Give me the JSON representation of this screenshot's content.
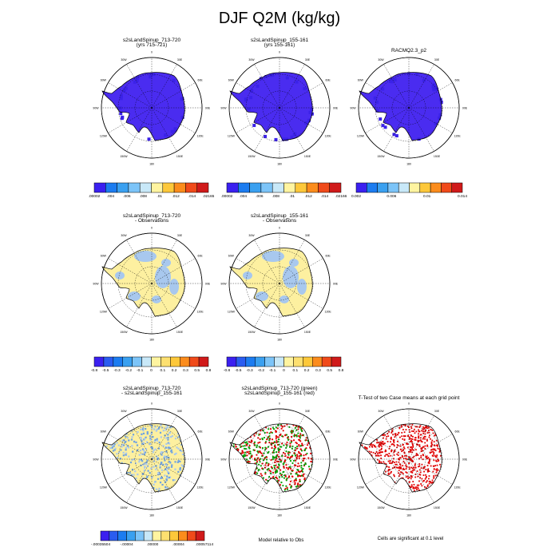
{
  "title": "DJF Q2M (kg/kg)",
  "colors": {
    "ice": "#4a2cf0",
    "ice_alt": "#3b22e8",
    "land_ok": "#fdf0a0",
    "land_diff": "#a8c8ee",
    "sig_red": "#e00000",
    "sig_green": "#00a000",
    "coast": "#000000",
    "grid": "#000000"
  },
  "lon_labels": [
    "0",
    "30E",
    "60E",
    "90E",
    "120E",
    "150E",
    "180",
    "150W",
    "120W",
    "90W",
    "60W",
    "30W"
  ],
  "panels": [
    {
      "id": "p1",
      "title1": "s2sLandSpinup_713-720",
      "title2": "(yrs 715-721)",
      "fill": "ice"
    },
    {
      "id": "p2",
      "title1": "s2sLandSpinup_155-161",
      "title2": "(yrs 155-161)",
      "fill": "ice"
    },
    {
      "id": "p3",
      "title1": "RACMO2.3_p2",
      "title2": "",
      "fill": "ice"
    },
    {
      "id": "p4",
      "title1": "s2sLandSpinup_713-720",
      "title2": "- Observations",
      "fill": "bias"
    },
    {
      "id": "p5",
      "title1": "s2sLandSpinup_155-161",
      "title2": "- Observations",
      "fill": "bias"
    },
    {
      "id": "p7",
      "title1": "s2sLandSpinup_713-720",
      "title2": "- s2sLandSpinup_155-161",
      "fill": "diff"
    },
    {
      "id": "p8",
      "title1": "s2sLandSpinup_713-720 (green)",
      "title2": "s2sLandSpinup_155-161 (red)",
      "fill": "dots"
    },
    {
      "id": "p9",
      "title1": "T-Test of two Case means at each grid point",
      "title2": "",
      "fill": "ttest"
    }
  ],
  "colorbars": {
    "cb1": {
      "colors": [
        "#3b20f0",
        "#1c7cf0",
        "#3aa0f0",
        "#7cc4f8",
        "#c8e8f8",
        "#fff4a0",
        "#fdc83a",
        "#fb8c1c",
        "#f04a1a",
        "#d01a1a"
      ],
      "labels": [
        ".00002",
        ".004",
        ".006",
        ".008",
        ".01",
        ".012",
        ".014",
        ".02165"
      ]
    },
    "cb2": {
      "colors": [
        "#3b20f0",
        "#1c7cf0",
        "#3aa0f0",
        "#7cc4f8",
        "#c8e8f8",
        "#fff4a0",
        "#fdc83a",
        "#fb8c1c",
        "#f04a1a",
        "#d01a1a"
      ],
      "labels": [
        ".00002",
        ".004",
        ".006",
        ".008",
        ".01",
        ".012",
        ".014",
        ".02166"
      ]
    },
    "cb3": {
      "colors": [
        "#3b20f0",
        "#1c7cf0",
        "#3aa0f0",
        "#7cc4f8",
        "#c8e8f8",
        "#fff4a0",
        "#fdc83a",
        "#fb8c1c",
        "#f04a1a",
        "#d01a1a"
      ],
      "labels": [
        "0.002",
        "0.006",
        "0.01",
        "0.014"
      ]
    },
    "cb4": {
      "colors": [
        "#3b20f0",
        "#2a5cf0",
        "#1c7cf0",
        "#3aa0f0",
        "#7cc4f8",
        "#c8e8f8",
        "#fff4a0",
        "#fde070",
        "#fdc83a",
        "#fb8c1c",
        "#f04a1a",
        "#d01a1a"
      ],
      "labels": [
        "-0.8",
        "-0.5",
        "-0.3",
        "-0.2",
        "-0.1",
        "0",
        "0.1",
        "0.2",
        "0.3",
        "0.5",
        "0.8"
      ]
    },
    "cb5": {
      "colors": [
        "#3b20f0",
        "#2a5cf0",
        "#1c7cf0",
        "#3aa0f0",
        "#7cc4f8",
        "#c8e8f8",
        "#fff4a0",
        "#fde070",
        "#fdc83a",
        "#fb8c1c",
        "#f04a1a",
        "#d01a1a"
      ],
      "labels": [
        "-0.8",
        "-0.5",
        "-0.3",
        "-0.2",
        "-0.1",
        "0",
        "0.1",
        "0.2",
        "0.3",
        "0.5",
        "0.8"
      ]
    },
    "cb7": {
      "colors": [
        "#3b20f0",
        "#2a5cf0",
        "#1c7cf0",
        "#3aa0f0",
        "#7cc4f8",
        "#c8e8f8",
        "#fff4a0",
        "#fde070",
        "#fdc83a",
        "#fb8c1c",
        "#f04a1a",
        "#d01a1a"
      ],
      "labels": [
        "-.00035504",
        "-.00004",
        ".00000",
        ".00004",
        ".00057114"
      ]
    }
  },
  "notes": {
    "p8": "Model relative to Obs",
    "p9": "Cells are significant at 0.1 level"
  }
}
